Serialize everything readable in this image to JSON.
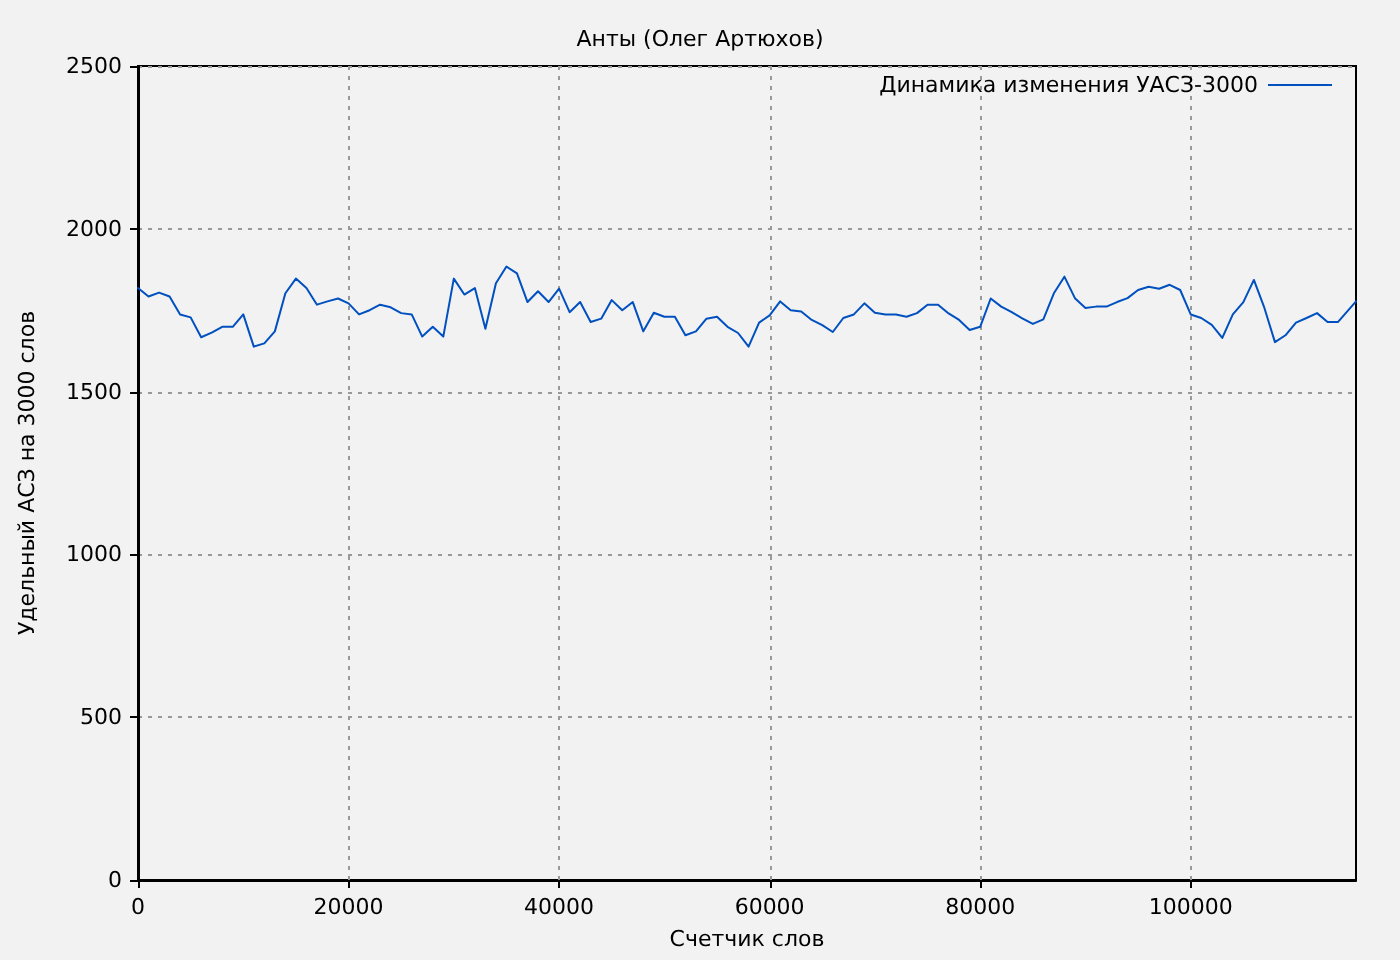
{
  "chart_data": {
    "type": "line",
    "title": "Анты (Олег Артюхов)",
    "xlabel": "Счетчик слов",
    "ylabel": "Удельный АСЗ на 3000 слов",
    "x": [
      0,
      1000,
      2000,
      3000,
      4000,
      5000,
      6000,
      7000,
      8000,
      9000,
      10000,
      11000,
      12000,
      13000,
      14000,
      15000,
      16000,
      17000,
      18000,
      19000,
      20000,
      21000,
      22000,
      23000,
      24000,
      25000,
      26000,
      27000,
      28000,
      29000,
      30000,
      31000,
      32000,
      33000,
      34000,
      35000,
      36000,
      37000,
      38000,
      39000,
      40000,
      41000,
      42000,
      43000,
      44000,
      45000,
      46000,
      47000,
      48000,
      49000,
      50000,
      51000,
      52000,
      53000,
      54000,
      55000,
      56000,
      57000,
      58000,
      59000,
      60000,
      61000,
      62000,
      63000,
      64000,
      65000,
      66000,
      67000,
      68000,
      69000,
      70000,
      71000,
      72000,
      73000,
      74000,
      75000,
      76000,
      77000,
      78000,
      79000,
      80000,
      81000,
      82000,
      83000,
      84000,
      85000,
      86000,
      87000,
      88000,
      89000,
      90000,
      91000,
      92000,
      93000,
      94000,
      95000,
      96000,
      97000,
      98000,
      99000,
      100000,
      101000,
      102000,
      103000,
      104000,
      105000,
      106000,
      107000,
      108000,
      109000,
      110000,
      111000,
      112000,
      113000,
      114000,
      115700
    ],
    "series": [
      {
        "name": "Динамика изменения УАСЗ-3000",
        "color": "#0050c0",
        "values": [
          1818,
          1792,
          1804,
          1792,
          1737,
          1728,
          1667,
          1681,
          1699,
          1699,
          1737,
          1638,
          1648,
          1685,
          1802,
          1847,
          1818,
          1767,
          1777,
          1786,
          1771,
          1737,
          1750,
          1767,
          1759,
          1741,
          1737,
          1669,
          1699,
          1669,
          1847,
          1798,
          1818,
          1693,
          1833,
          1884,
          1863,
          1775,
          1808,
          1775,
          1816,
          1744,
          1775,
          1714,
          1724,
          1781,
          1750,
          1775,
          1685,
          1742,
          1730,
          1730,
          1673,
          1685,
          1724,
          1730,
          1699,
          1680,
          1638,
          1712,
          1734,
          1777,
          1750,
          1746,
          1720,
          1704,
          1683,
          1726,
          1737,
          1771,
          1742,
          1737,
          1737,
          1730,
          1741,
          1767,
          1767,
          1740,
          1720,
          1689,
          1699,
          1786,
          1761,
          1744,
          1725,
          1708,
          1722,
          1802,
          1853,
          1787,
          1757,
          1761,
          1761,
          1775,
          1787,
          1812,
          1822,
          1816,
          1828,
          1812,
          1737,
          1726,
          1705,
          1665,
          1737,
          1775,
          1843,
          1757,
          1652,
          1673,
          1712,
          1726,
          1741,
          1714,
          1714,
          1777
        ]
      }
    ],
    "xlim": [
      0,
      115700
    ],
    "xticks": [
      0,
      20000,
      40000,
      60000,
      80000,
      100000
    ],
    "ylim": [
      0,
      2500
    ],
    "yticks": [
      0,
      500,
      1000,
      1500,
      2000,
      2500
    ],
    "grid": true,
    "legend": "top right",
    "line_style": "solid"
  }
}
